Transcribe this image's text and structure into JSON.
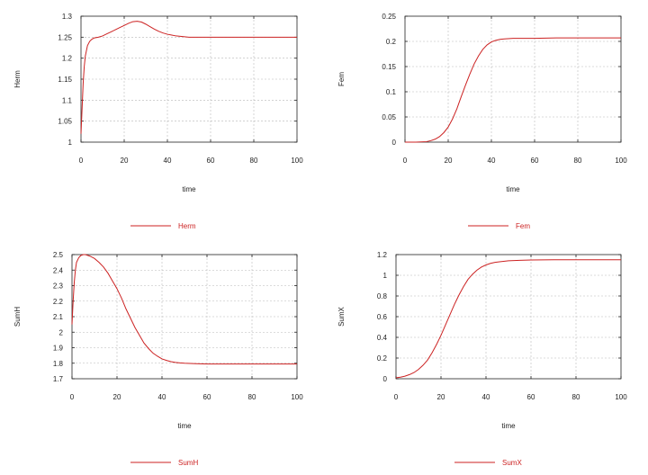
{
  "colors": {
    "series": "#cc2222"
  },
  "chart_data": [
    {
      "type": "line",
      "xlabel": "time",
      "ylabel": "Herm",
      "xlim": [
        0,
        100
      ],
      "ylim": [
        1,
        1.3
      ],
      "xticks": [
        "0",
        "20",
        "40",
        "60",
        "80",
        "100"
      ],
      "yticks": [
        "1",
        "1.05",
        "1.1",
        "1.15",
        "1.2",
        "1.25",
        "1.3"
      ],
      "grid": true,
      "legend_position": "bottom-center",
      "series": [
        {
          "name": "Herm",
          "x": [
            0,
            0.5,
            1,
            1.5,
            2,
            3,
            4,
            5,
            6,
            8,
            10,
            12,
            14,
            16,
            18,
            20,
            22,
            24,
            26,
            28,
            30,
            32,
            34,
            36,
            38,
            40,
            42,
            44,
            46,
            48,
            50,
            55,
            60,
            70,
            80,
            90,
            100
          ],
          "y": [
            1.02,
            1.08,
            1.14,
            1.18,
            1.205,
            1.23,
            1.24,
            1.245,
            1.248,
            1.25,
            1.253,
            1.258,
            1.263,
            1.268,
            1.273,
            1.278,
            1.283,
            1.287,
            1.288,
            1.286,
            1.281,
            1.275,
            1.269,
            1.264,
            1.26,
            1.257,
            1.255,
            1.253,
            1.252,
            1.251,
            1.25,
            1.25,
            1.25,
            1.25,
            1.25,
            1.25,
            1.25
          ]
        }
      ]
    },
    {
      "type": "line",
      "xlabel": "time",
      "ylabel": "Fem",
      "xlim": [
        0,
        100
      ],
      "ylim": [
        0,
        0.25
      ],
      "xticks": [
        "0",
        "20",
        "40",
        "60",
        "80",
        "100"
      ],
      "yticks": [
        "0",
        "0.05",
        "0.1",
        "0.15",
        "0.2",
        "0.25"
      ],
      "grid": true,
      "legend_position": "bottom-center",
      "series": [
        {
          "name": "Fem",
          "x": [
            0,
            5,
            10,
            12,
            14,
            16,
            18,
            20,
            22,
            24,
            26,
            28,
            30,
            32,
            34,
            36,
            38,
            40,
            42,
            44,
            46,
            50,
            55,
            60,
            70,
            80,
            90,
            100
          ],
          "y": [
            0,
            0,
            0.001,
            0.003,
            0.006,
            0.011,
            0.019,
            0.03,
            0.046,
            0.066,
            0.09,
            0.113,
            0.135,
            0.155,
            0.171,
            0.184,
            0.193,
            0.199,
            0.202,
            0.204,
            0.205,
            0.206,
            0.206,
            0.206,
            0.207,
            0.207,
            0.207,
            0.207
          ]
        }
      ]
    },
    {
      "type": "line",
      "xlabel": "time",
      "ylabel": "SumH",
      "xlim": [
        0,
        100
      ],
      "ylim": [
        1.7,
        2.5
      ],
      "xticks": [
        "0",
        "20",
        "40",
        "60",
        "80",
        "100"
      ],
      "yticks": [
        "1.7",
        "1.8",
        "1.9",
        "2",
        "2.1",
        "2.2",
        "2.3",
        "2.4",
        "2.5"
      ],
      "grid": true,
      "legend_position": "bottom-center",
      "series": [
        {
          "name": "SumH",
          "x": [
            0,
            0.5,
            1,
            1.5,
            2,
            3,
            4,
            5,
            6,
            8,
            10,
            12,
            14,
            16,
            18,
            20,
            22,
            24,
            26,
            28,
            30,
            32,
            34,
            36,
            38,
            40,
            42,
            44,
            46,
            48,
            50,
            55,
            60,
            70,
            80,
            90,
            100
          ],
          "y": [
            2.05,
            2.2,
            2.32,
            2.4,
            2.45,
            2.48,
            2.495,
            2.5,
            2.5,
            2.49,
            2.475,
            2.45,
            2.42,
            2.38,
            2.33,
            2.28,
            2.22,
            2.15,
            2.09,
            2.03,
            1.98,
            1.93,
            1.895,
            1.865,
            1.845,
            1.828,
            1.818,
            1.81,
            1.805,
            1.802,
            1.8,
            1.797,
            1.795,
            1.795,
            1.795,
            1.795,
            1.795
          ]
        }
      ]
    },
    {
      "type": "line",
      "xlabel": "time",
      "ylabel": "SumX",
      "xlim": [
        0,
        100
      ],
      "ylim": [
        0,
        1.2
      ],
      "xticks": [
        "0",
        "20",
        "40",
        "60",
        "80",
        "100"
      ],
      "yticks": [
        "0",
        "0.2",
        "0.4",
        "0.6",
        "0.8",
        "1",
        "1.2"
      ],
      "grid": true,
      "legend_position": "bottom-center",
      "series": [
        {
          "name": "SumX",
          "x": [
            0,
            2,
            4,
            6,
            8,
            10,
            12,
            14,
            16,
            18,
            20,
            22,
            24,
            26,
            28,
            30,
            32,
            34,
            36,
            38,
            40,
            42,
            44,
            46,
            50,
            55,
            60,
            70,
            80,
            90,
            100
          ],
          "y": [
            0.01,
            0.015,
            0.025,
            0.04,
            0.06,
            0.09,
            0.13,
            0.18,
            0.25,
            0.33,
            0.42,
            0.52,
            0.62,
            0.72,
            0.81,
            0.89,
            0.96,
            1.01,
            1.05,
            1.08,
            1.1,
            1.115,
            1.125,
            1.13,
            1.14,
            1.145,
            1.148,
            1.15,
            1.15,
            1.15,
            1.15
          ]
        }
      ]
    }
  ]
}
